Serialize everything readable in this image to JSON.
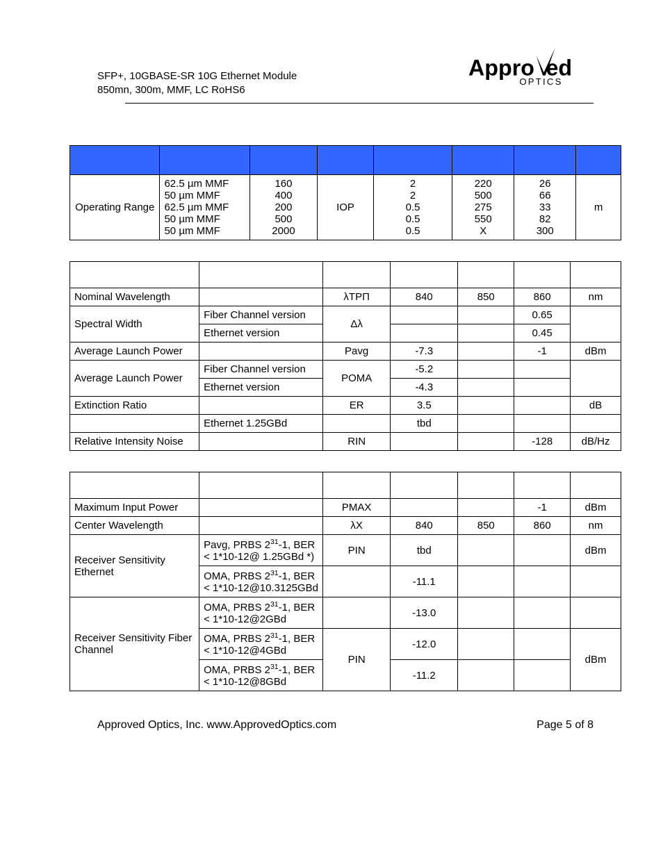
{
  "header": {
    "line1": "SFP+, 10GBASE-SR 10G Ethernet Module",
    "line2": "850mn, 300m, MMF, LC RoHS6",
    "logo_main": "Appro",
    "logo_v": "v",
    "logo_ed": "ed",
    "logo_sub": "OPTICS"
  },
  "table1": {
    "header_bg": "#3366ff",
    "rows": [
      {
        "c0": "Operating Range",
        "c1": "62.5 µm MMF\n50 µm MMF\n62.5 µm MMF\n50 µm MMF\n50 µm MMF",
        "c2": "160\n400\n200\n500\n2000",
        "c3": "IOP",
        "c4": "2\n2\n0.5\n0.5\n0.5",
        "c5": "220\n500\n275\n550\nX",
        "c6": "26\n66\n33\n82\n300",
        "c7": "m"
      }
    ]
  },
  "table2": {
    "header_bg": "#ffffff",
    "rows": [
      {
        "c0": "Nominal Wavelength",
        "c1": "",
        "c2": "λTPΠ",
        "c3": "840",
        "c4": "850",
        "c5": "860",
        "c6": "nm"
      },
      {
        "c0_rowspan": 2,
        "c0": "Spectral Width",
        "c1": "Fiber Channel version",
        "c2_rowspan": 2,
        "c2": "Δλ",
        "c3": "",
        "c4": "",
        "c5": "0.65",
        "c6_rowspan": 2,
        "c6": ""
      },
      {
        "c1": "Ethernet version",
        "c3": "",
        "c4": "",
        "c5": "0.45"
      },
      {
        "c0": "Average Launch Power",
        "c1": "",
        "c2": "Pavg",
        "c3": "-7.3",
        "c4": "",
        "c5": "-1",
        "c6": "dBm"
      },
      {
        "c0_rowspan": 2,
        "c0": "Average Launch Power",
        "c1": "Fiber Channel version",
        "c2_rowspan": 2,
        "c2": "POMA",
        "c3": "-5.2",
        "c4": "",
        "c5": "",
        "c6_rowspan": 2,
        "c6": ""
      },
      {
        "c1": "Ethernet version",
        "c3": "-4.3",
        "c4": "",
        "c5": ""
      },
      {
        "c0": "Extinction Ratio",
        "c1": "",
        "c2": "ER",
        "c3": "3.5",
        "c4": "",
        "c5": "",
        "c6": "dB"
      },
      {
        "c0": "",
        "c1": "Ethernet 1.25GBd",
        "c2": "",
        "c3": "tbd",
        "c4": "",
        "c5": "",
        "c6": ""
      },
      {
        "c0": "Relative Intensity Noise",
        "c1": "",
        "c2": "RIN",
        "c3": "",
        "c4": "",
        "c5": "-128",
        "c6": "dB/Hz"
      }
    ]
  },
  "table3": {
    "rows": [
      {
        "c0": "Maximum Input Power",
        "c1": "",
        "c2": "PMAX",
        "c3": "",
        "c4": "",
        "c5": "-1",
        "c6": "dBm"
      },
      {
        "c0": "Center Wavelength",
        "c1": "",
        "c2": "λX",
        "c3": "840",
        "c4": "850",
        "c5": "860",
        "c6": "nm"
      },
      {
        "c0_rowspan": 2,
        "c0": "Receiver Sensitivity Ethernet",
        "c1_html": "Pavg, PRBS 2<sup>31</sup>-1, BER < 1*10-12@ 1.25GBd *)",
        "c2": "PIN",
        "c3": "tbd",
        "c4": "",
        "c5": "",
        "c6": "dBm"
      },
      {
        "c1_html": "OMA, PRBS 2<sup>31</sup>-1, BER < 1*10-12@10.3125GBd",
        "c2": "",
        "c3": "-11.1",
        "c4": "",
        "c5": "",
        "c6": ""
      },
      {
        "c0_rowspan": 3,
        "c0": "Receiver Sensitivity Fiber Channel",
        "c1_html": "OMA, PRBS 2<sup>31</sup>-1, BER < 1*10-12@2GBd",
        "c2": "",
        "c3": "-13.0",
        "c4": "",
        "c5": "",
        "c6": ""
      },
      {
        "c1_html": "OMA, PRBS 2<sup>31</sup>-1, BER < 1*10-12@4GBd",
        "c2_rowspan": 2,
        "c2": "PIN",
        "c3": "-12.0",
        "c4": "",
        "c5": "",
        "c6_rowspan": 2,
        "c6": "dBm"
      },
      {
        "c1_html": "OMA, PRBS 2<sup>31</sup>-1, BER < 1*10-12@8GBd",
        "c3": "-11.2",
        "c4": "",
        "c5": ""
      }
    ]
  },
  "footer": {
    "left": "Approved Optics, Inc.  www.ApprovedOptics.com",
    "right": "Page 5 of 8"
  }
}
